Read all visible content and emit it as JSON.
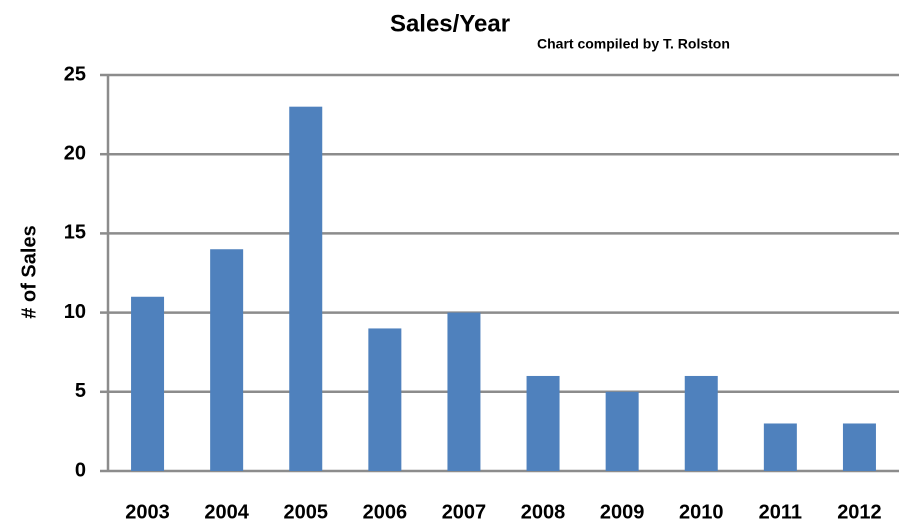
{
  "chart_data": {
    "type": "bar",
    "title": "Sales/Year",
    "subtitle": "Chart compiled by T. Rolston",
    "y_label": "# of Sales",
    "categories": [
      "2003",
      "2004",
      "2005",
      "2006",
      "2007",
      "2008",
      "2009",
      "2010",
      "2011",
      "2012"
    ],
    "values": [
      11,
      14,
      23,
      9,
      10,
      6,
      5,
      6,
      3,
      3
    ],
    "color": "#4f81bd",
    "ylim": [
      0,
      25
    ],
    "yticks": [
      0,
      5,
      10,
      15,
      20,
      25
    ],
    "grid": true
  }
}
